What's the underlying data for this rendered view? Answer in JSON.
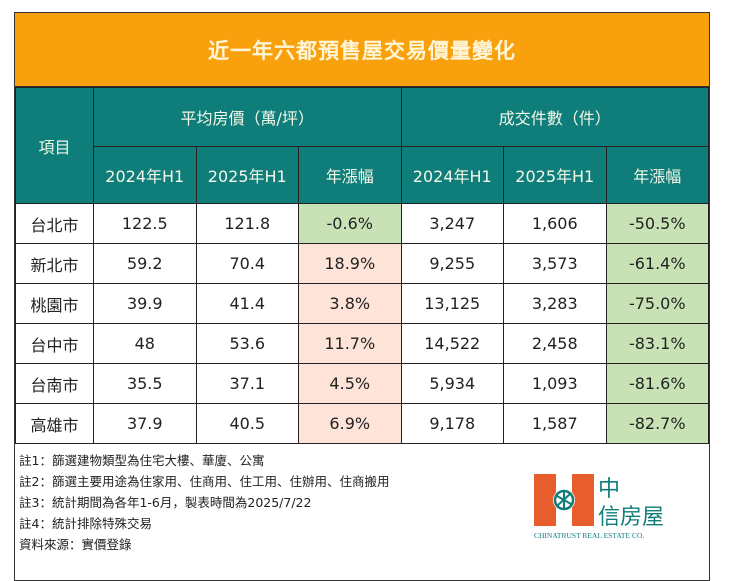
{
  "title": "近一年六都預售屋交易價量變化",
  "header": {
    "item": "項目",
    "price_group": "平均房價（萬/坪）",
    "count_group": "成交件數（件）",
    "cols": [
      "2024年H1",
      "2025年H1",
      "年漲幅",
      "2024年H1",
      "2025年H1",
      "年漲幅"
    ]
  },
  "rows": [
    {
      "city": "台北市",
      "p24": "122.5",
      "p25": "121.8",
      "pchg": "-0.6%",
      "c24": "3,247",
      "c25": "1,606",
      "cchg": "-50.5%"
    },
    {
      "city": "新北市",
      "p24": "59.2",
      "p25": "70.4",
      "pchg": "18.9%",
      "c24": "9,255",
      "c25": "3,573",
      "cchg": "-61.4%"
    },
    {
      "city": "桃園市",
      "p24": "39.9",
      "p25": "41.4",
      "pchg": "3.8%",
      "c24": "13,125",
      "c25": "3,283",
      "cchg": "-75.0%"
    },
    {
      "city": "台中市",
      "p24": "48",
      "p25": "53.6",
      "pchg": "11.7%",
      "c24": "14,522",
      "c25": "2,458",
      "cchg": "-83.1%"
    },
    {
      "city": "台南市",
      "p24": "35.5",
      "p25": "37.1",
      "pchg": "4.5%",
      "c24": "5,934",
      "c25": "1,093",
      "cchg": "-81.6%"
    },
    {
      "city": "高雄市",
      "p24": "37.9",
      "p25": "40.5",
      "pchg": "6.9%",
      "c24": "9,178",
      "c25": "1,587",
      "cchg": "-82.7%"
    }
  ],
  "notes": [
    "註1：篩選建物類型為住宅大樓、華廈、公寓",
    "註2：篩選主要用途為住家用、住商用、住工用、住辦用、住商搬用",
    "註3：統計期間為各年1-6月，製表時間為2025/7/22",
    "註4：統計排除特殊交易",
    "資料來源：實價登錄"
  ],
  "logo": {
    "zh_top": "中",
    "zh_bottom": "信房屋",
    "en": "CHINATRUST REAL ESTATE CO."
  },
  "colors": {
    "title_bg": "#f8a10c",
    "header_bg": "#0f7e7b",
    "decline": "#c8e2b6",
    "increase": "#fde3d8",
    "logo_orange": "#e85d2c",
    "logo_teal": "#0f7e7b"
  }
}
